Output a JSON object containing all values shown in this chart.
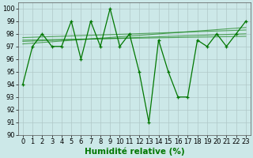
{
  "x": [
    0,
    1,
    2,
    3,
    4,
    5,
    6,
    7,
    8,
    9,
    10,
    11,
    12,
    13,
    14,
    15,
    16,
    17,
    18,
    19,
    20,
    21,
    22,
    23
  ],
  "y_main": [
    94,
    97,
    98,
    97,
    97,
    99,
    96,
    99,
    97,
    100,
    97,
    98,
    95,
    91,
    97.5,
    95,
    93,
    93,
    97.5,
    97,
    98,
    97,
    98,
    99
  ],
  "trend_lines": [
    {
      "x": [
        0,
        23
      ],
      "y": [
        97.7,
        98.3
      ]
    },
    {
      "x": [
        0,
        23
      ],
      "y": [
        97.4,
        98.0
      ]
    },
    {
      "x": [
        0,
        23
      ],
      "y": [
        97.2,
        98.5
      ]
    },
    {
      "x": [
        0,
        23
      ],
      "y": [
        97.5,
        97.8
      ]
    }
  ],
  "line_color": "#007700",
  "bg_color": "#cce8e8",
  "grid_major_color": "#b0c8c8",
  "grid_minor_color": "#daeaea",
  "ylabel_ticks": [
    90,
    91,
    92,
    93,
    94,
    95,
    96,
    97,
    98,
    99,
    100
  ],
  "xlabel": "Humidité relative (%)",
  "xlim": [
    -0.5,
    23.5
  ],
  "ylim": [
    90,
    100.5
  ],
  "tick_fontsize": 6,
  "label_fontsize": 7.5
}
